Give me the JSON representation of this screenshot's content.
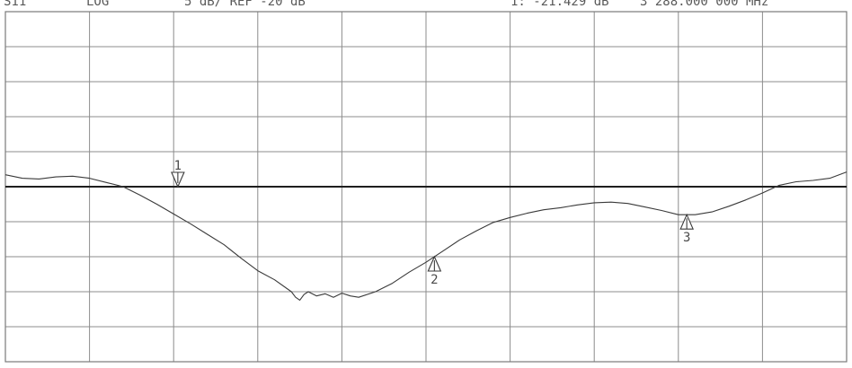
{
  "header": {
    "param": "S11",
    "format": "LOG",
    "scale_ref": "5 dB/ REF -20 dB",
    "marker_readout": "1: -21.429 dB",
    "marker_freq": "3 288.000 000 MHz"
  },
  "chart_data": {
    "type": "line",
    "title": "",
    "xlabel": "",
    "ylabel": "",
    "grid": true,
    "x_divisions": 10,
    "y_divisions": 10,
    "ylim": [
      -45,
      5
    ],
    "reference_level": -20,
    "series": [
      {
        "x": [
          0,
          0.2,
          0.4,
          0.6,
          0.8,
          1.0,
          1.2,
          1.4,
          1.6,
          1.8,
          2.0,
          2.2,
          2.4,
          2.6,
          2.8,
          3.0,
          3.2,
          3.4,
          3.45,
          3.5,
          3.55,
          3.6,
          3.7,
          3.8,
          3.9,
          4.0,
          4.1,
          4.2,
          4.4,
          4.6,
          4.8,
          5.0,
          5.2,
          5.4,
          5.6,
          5.8,
          6.0,
          6.2,
          6.4,
          6.6,
          6.8,
          7.0,
          7.2,
          7.4,
          7.6,
          7.8,
          8.0,
          8.2,
          8.4,
          8.6,
          8.8,
          9.0,
          9.2,
          9.4,
          9.6,
          9.8,
          10.0
        ],
        "y": [
          -18.3,
          -18.8,
          -18.9,
          -18.6,
          -18.5,
          -18.8,
          -19.4,
          -20.0,
          -21.2,
          -22.5,
          -23.9,
          -25.3,
          -26.8,
          -28.3,
          -30.2,
          -32.0,
          -33.3,
          -35.0,
          -35.8,
          -36.2,
          -35.4,
          -35.0,
          -35.6,
          -35.3,
          -35.8,
          -35.2,
          -35.6,
          -35.8,
          -35.0,
          -33.8,
          -32.2,
          -30.8,
          -29.2,
          -27.6,
          -26.3,
          -25.1,
          -24.4,
          -23.8,
          -23.3,
          -23.0,
          -22.6,
          -22.3,
          -22.2,
          -22.4,
          -22.9,
          -23.4,
          -24.0,
          -24.0,
          -23.6,
          -22.8,
          -21.9,
          -20.9,
          -19.8,
          -19.3,
          -19.1,
          -18.8,
          -17.9
        ]
      }
    ],
    "markers": [
      {
        "label": "1",
        "x": 2.05,
        "y": -20.0
      },
      {
        "label": "2",
        "x": 5.1,
        "y": -30.0
      },
      {
        "label": "3",
        "x": 8.1,
        "y": -24.0
      }
    ]
  }
}
